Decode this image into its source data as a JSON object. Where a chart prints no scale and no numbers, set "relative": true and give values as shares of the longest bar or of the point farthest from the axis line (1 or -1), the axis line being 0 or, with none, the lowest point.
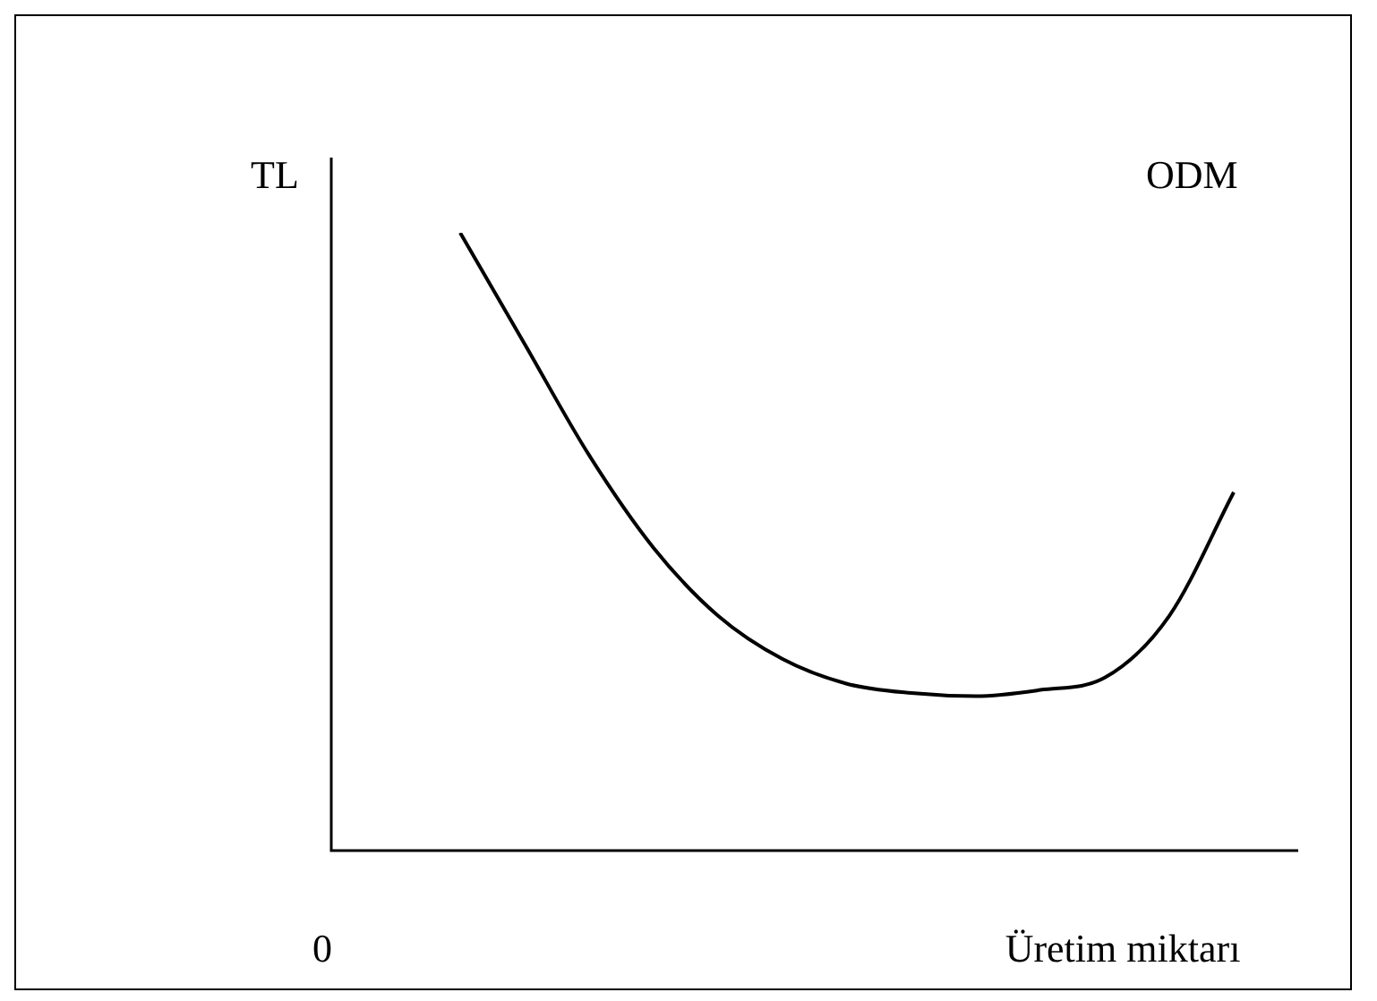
{
  "chart_data": {
    "type": "line",
    "relative": true,
    "ylabel": "TL",
    "xlabel": "Üretim miktarı",
    "annotations": [
      "0"
    ],
    "categories": [
      null,
      null,
      null,
      null,
      null,
      null,
      null,
      null,
      null,
      null,
      null,
      null,
      null,
      null,
      null,
      null
    ],
    "series": [
      {
        "name": "ODM",
        "color": "#000000",
        "values": [
          null,
          null,
          1.0,
          0.82,
          0.64,
          0.49,
          0.38,
          0.31,
          0.27,
          0.255,
          0.25,
          0.26,
          0.28,
          0.38,
          0.58,
          null
        ]
      }
    ],
    "marker": "none"
  }
}
